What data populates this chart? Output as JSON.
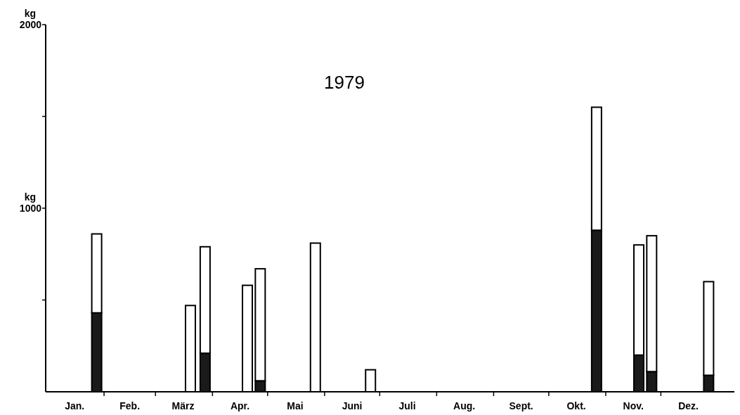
{
  "chart_data": {
    "type": "bar",
    "title": "1979",
    "ylabel": "kg",
    "stacked": true,
    "x": [
      "1979-01-28",
      "1979-03-20",
      "1979-03-28",
      "1979-04-20",
      "1979-04-27",
      "1979-05-27",
      "1979-06-26",
      "1979-10-27",
      "1979-11-19",
      "1979-11-26",
      "1979-12-27"
    ],
    "series": [
      {
        "color": "#1a1a1a",
        "values": [
          430,
          null,
          210,
          null,
          60,
          null,
          null,
          880,
          200,
          110,
          90
        ]
      },
      {
        "color": "#ffffff",
        "values": [
          430,
          470,
          580,
          580,
          610,
          810,
          120,
          670,
          600,
          740,
          510
        ]
      }
    ],
    "xlim": [
      "1979-01-01",
      "1980-01-10"
    ],
    "xticks": [
      {
        "value": "1979-01-16",
        "label": "Jan."
      },
      {
        "value": "1979-02-01",
        "label": null
      },
      {
        "value": "1979-02-15",
        "label": "Feb."
      },
      {
        "value": "1979-03-01",
        "label": null
      },
      {
        "value": "1979-03-16",
        "label": "März"
      },
      {
        "value": "1979-04-01",
        "label": null
      },
      {
        "value": "1979-04-16",
        "label": "Apr."
      },
      {
        "value": "1979-05-01",
        "label": null
      },
      {
        "value": "1979-05-16",
        "label": "Mai"
      },
      {
        "value": "1979-06-01",
        "label": null
      },
      {
        "value": "1979-06-16",
        "label": "Juni"
      },
      {
        "value": "1979-07-01",
        "label": null
      },
      {
        "value": "1979-07-16",
        "label": "Juli"
      },
      {
        "value": "1979-08-01",
        "label": null
      },
      {
        "value": "1979-08-16",
        "label": "Aug."
      },
      {
        "value": "1979-09-01",
        "label": null
      },
      {
        "value": "1979-09-16",
        "label": "Sept."
      },
      {
        "value": "1979-10-01",
        "label": null
      },
      {
        "value": "1979-10-16",
        "label": "Okt."
      },
      {
        "value": "1979-11-01",
        "label": null
      },
      {
        "value": "1979-11-16",
        "label": "Nov."
      },
      {
        "value": "1979-12-01",
        "label": null
      },
      {
        "value": "1979-12-16",
        "label": "Dez."
      }
    ],
    "ylim": [
      0,
      2000
    ],
    "yticks": [
      {
        "value": 500,
        "label": null
      },
      1000,
      {
        "value": 1500,
        "label": null
      },
      2000
    ],
    "grid": false
  }
}
